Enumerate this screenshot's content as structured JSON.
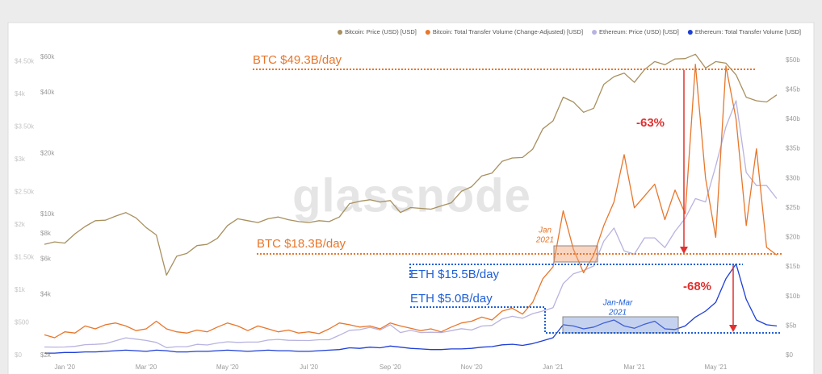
{
  "chart_data": {
    "type": "line",
    "legend_position": "top-right",
    "watermark": "glassnode",
    "x": [
      -0.5,
      -0.25,
      0,
      0.25,
      0.5,
      0.75,
      1,
      1.25,
      1.5,
      1.75,
      2,
      2.25,
      2.5,
      2.75,
      3,
      3.25,
      3.5,
      3.75,
      4,
      4.25,
      4.5,
      4.75,
      5,
      5.25,
      5.5,
      5.75,
      6,
      6.25,
      6.5,
      6.75,
      7,
      7.25,
      7.5,
      7.75,
      8,
      8.25,
      8.5,
      8.75,
      9,
      9.25,
      9.5,
      9.75,
      10,
      10.25,
      10.5,
      10.75,
      11,
      11.25,
      11.5,
      11.75,
      12,
      12.25,
      12.5,
      12.75,
      13,
      13.25,
      13.5,
      13.75,
      14,
      14.25,
      14.5,
      14.75,
      15,
      15.25,
      15.5,
      15.75,
      16,
      16.25,
      16.5,
      16.75,
      17,
      17.25,
      17.5
    ],
    "xlim": [
      -0.5,
      17.5
    ],
    "xticks": [
      {
        "value": 0,
        "label": "Jan '20"
      },
      {
        "value": 2,
        "label": "Mar '20"
      },
      {
        "value": 4,
        "label": "May '20"
      },
      {
        "value": 6,
        "label": "Jul '20"
      },
      {
        "value": 8,
        "label": "Sep '20"
      },
      {
        "value": 10,
        "label": "Nov '20"
      },
      {
        "value": 12,
        "label": "Jan '21"
      },
      {
        "value": 14,
        "label": "Mar '21"
      },
      {
        "value": 16,
        "label": "May '21"
      }
    ],
    "ylim": [
      2000,
      66300
    ],
    "ylog": true,
    "yticks": [
      {
        "value": 2000,
        "label": "$2k"
      },
      {
        "value": 4000,
        "label": "$4k"
      },
      {
        "value": 6000,
        "label": "$6k"
      },
      {
        "value": 8000,
        "label": "$8k"
      },
      {
        "value": 10000,
        "label": "$10k"
      },
      {
        "value": 20000,
        "label": "$20k"
      },
      {
        "value": 40000,
        "label": "$40k"
      },
      {
        "value": 60000,
        "label": "$60k"
      }
    ],
    "y2lim": [
      0,
      52
    ],
    "y2ticks": [
      {
        "value": 0,
        "label": "$0"
      },
      {
        "value": 5,
        "label": "$5b"
      },
      {
        "value": 10,
        "label": "$10b"
      },
      {
        "value": 15,
        "label": "$15b"
      },
      {
        "value": 20,
        "label": "$20b"
      },
      {
        "value": 25,
        "label": "$25b"
      },
      {
        "value": 30,
        "label": "$30b"
      },
      {
        "value": 35,
        "label": "$35b"
      },
      {
        "value": 40,
        "label": "$40b"
      },
      {
        "value": 45,
        "label": "$45b"
      },
      {
        "value": 50,
        "label": "$50b"
      }
    ],
    "y3lim": [
      0,
      4700
    ],
    "y3ticks": [
      {
        "value": 0,
        "label": "$0"
      },
      {
        "value": 500,
        "label": "$500"
      },
      {
        "value": 1000,
        "label": "$1k"
      },
      {
        "value": 1500,
        "label": "$1.50k"
      },
      {
        "value": 2000,
        "label": "$2k"
      },
      {
        "value": 2500,
        "label": "$2.50k"
      },
      {
        "value": 3000,
        "label": "$3k"
      },
      {
        "value": 3500,
        "label": "$3.50k"
      },
      {
        "value": 4000,
        "label": "$4k"
      },
      {
        "value": 4500,
        "label": "$4.50k"
      }
    ],
    "grid": false,
    "series": [
      {
        "name": "Bitcoin: Price (USD) [USD]",
        "color": "#a8905f",
        "axis": "y",
        "values": [
          7100,
          7300,
          7200,
          8000,
          8700,
          9300,
          9350,
          9800,
          10200,
          9600,
          8600,
          7900,
          5000,
          6200,
          6400,
          7000,
          7100,
          7600,
          8800,
          9500,
          9300,
          9100,
          9500,
          9700,
          9400,
          9200,
          9100,
          9300,
          9200,
          9700,
          11300,
          11600,
          11800,
          11500,
          11700,
          10200,
          10800,
          10700,
          10600,
          11000,
          11400,
          13000,
          13700,
          15500,
          16000,
          18300,
          19000,
          19100,
          21000,
          26500,
          29000,
          38000,
          36000,
          32000,
          33500,
          44000,
          48000,
          50000,
          45000,
          52000,
          57000,
          55000,
          58800,
          59000,
          62000,
          53000,
          57000,
          56000,
          49000,
          38000,
          36500,
          36000,
          39000
        ]
      },
      {
        "name": "Bitcoin: Total Transfer Volume (Change-Adjusted) [USD]",
        "color": "#e8762b",
        "axis": "y2",
        "values": [
          3.5,
          3,
          4,
          3.8,
          5,
          4.5,
          5.2,
          5.5,
          5,
          4.2,
          4.5,
          5.8,
          4.5,
          4,
          3.8,
          4.3,
          4,
          4.8,
          5.5,
          5,
          4.2,
          5,
          4.5,
          4,
          4.3,
          3.8,
          4,
          3.7,
          4.5,
          5.5,
          5.2,
          4.8,
          5,
          4.5,
          5.5,
          5,
          4.6,
          4.2,
          4.5,
          4,
          4.8,
          5.5,
          5.8,
          6.5,
          6,
          7.5,
          8,
          7,
          9,
          13,
          15,
          24.5,
          18,
          14,
          17,
          22,
          26,
          34,
          25,
          27,
          29,
          23,
          28,
          24,
          49.3,
          30,
          20,
          49,
          40,
          22,
          35,
          18.3,
          17
        ]
      },
      {
        "name": "Ethereum: Price (USD) [USD]",
        "color": "#b8b3e0",
        "axis": "y3",
        "values": [
          130,
          128,
          130,
          140,
          165,
          170,
          180,
          225,
          270,
          250,
          230,
          200,
          120,
          135,
          135,
          170,
          160,
          190,
          210,
          200,
          205,
          205,
          235,
          245,
          232,
          230,
          228,
          240,
          240,
          310,
          385,
          395,
          430,
          390,
          470,
          350,
          385,
          350,
          355,
          350,
          380,
          410,
          390,
          450,
          460,
          560,
          600,
          570,
          640,
          680,
          730,
          1100,
          1250,
          1300,
          1370,
          1750,
          1950,
          1600,
          1550,
          1800,
          1800,
          1650,
          1900,
          2100,
          2400,
          2350,
          2900,
          3500,
          3900,
          2800,
          2600,
          2600,
          2400
        ]
      },
      {
        "name": "Ethereum: Total Transfer Volume [USD]",
        "color": "#1f3fd6",
        "axis": "y2",
        "values": [
          0.4,
          0.4,
          0.5,
          0.5,
          0.6,
          0.6,
          0.7,
          0.8,
          0.9,
          0.8,
          0.7,
          0.9,
          0.8,
          0.6,
          0.6,
          0.7,
          0.7,
          0.8,
          0.9,
          0.8,
          0.7,
          0.8,
          0.9,
          0.8,
          0.8,
          0.7,
          0.7,
          0.8,
          0.9,
          1,
          1.3,
          1.2,
          1.4,
          1.3,
          1.6,
          1.4,
          1.2,
          1.1,
          1,
          1,
          1.1,
          1.1,
          1.2,
          1.4,
          1.5,
          1.8,
          1.9,
          1.7,
          2,
          2.5,
          3,
          5.2,
          5,
          4.5,
          4.8,
          5.5,
          6,
          5,
          4.6,
          5.3,
          5.8,
          4.5,
          4.4,
          5,
          6.5,
          7.5,
          9,
          13,
          15.5,
          9.5,
          6,
          5.2,
          5
        ]
      }
    ],
    "annotations": [
      "BTC $49.3B/day",
      "BTC $18.3B/day",
      "ETH $15.5B/day",
      "ETH $5.0B/day",
      "-63%",
      "-68%",
      "Jan",
      "2021",
      "Jan-Mar",
      "2021"
    ]
  }
}
